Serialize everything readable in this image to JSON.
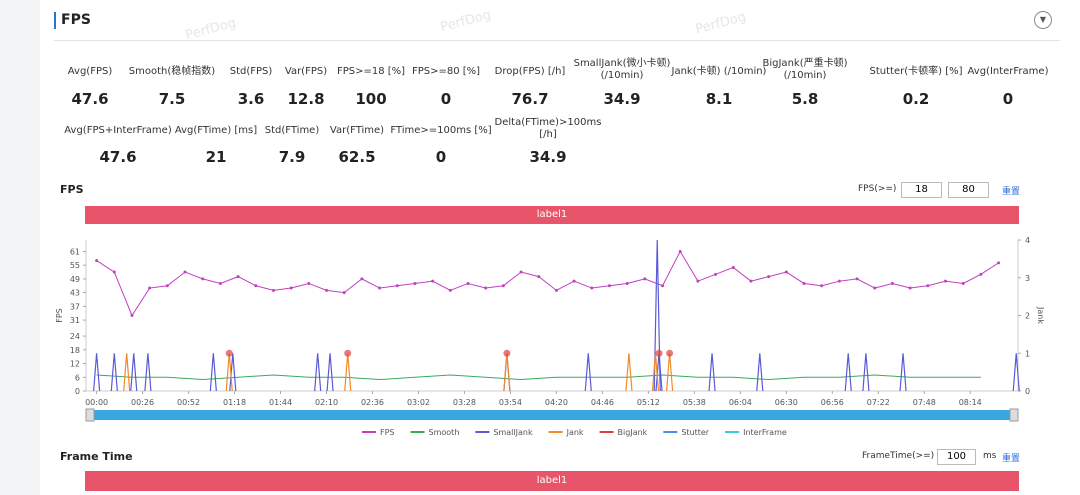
{
  "header": {
    "title": "FPS"
  },
  "watermark": "PerfDog",
  "stats": {
    "rows": [
      [
        {
          "label": "Avg(FPS)",
          "value": 47.6
        },
        {
          "label": "Smooth(稳帧指数)",
          "value": 7.5
        },
        {
          "label": "Std(FPS)",
          "value": 3.6
        },
        {
          "label": "Var(FPS)",
          "value": 12.8
        },
        {
          "label": "FPS>=18 [%]",
          "value": 100
        },
        {
          "label": "FPS>=80 [%]",
          "value": 0
        },
        {
          "label": "Drop(FPS) [/h]",
          "value": 76.7
        },
        {
          "label": "SmallJank(微小卡顿) (/10min)",
          "value": 34.9
        },
        {
          "label": "Jank(卡顿) (/10min)",
          "value": 8.1
        },
        {
          "label": "BigJank(严重卡顿) (/10min)",
          "value": 5.8
        },
        {
          "label": "Stutter(卡顿率) [%]",
          "value": 0.2
        },
        {
          "label": "Avg(InterFrame)",
          "value": 0
        }
      ],
      [
        {
          "label": "Avg(FPS+InterFrame)",
          "value": 47.6
        },
        {
          "label": "Avg(FTime) [ms]",
          "value": 21
        },
        {
          "label": "Std(FTime)",
          "value": 7.9
        },
        {
          "label": "Var(FTime)",
          "value": 62.5
        },
        {
          "label": "FTime>=100ms [%]",
          "value": 0
        },
        {
          "label": "Delta(FTime)>100ms [/h]",
          "value": 34.9
        }
      ]
    ]
  },
  "fps_panel": {
    "title": "FPS",
    "threshold_label": "FPS(>=)",
    "thresholds": [
      18,
      80
    ],
    "reset": "重置",
    "band_label": "label1"
  },
  "chart_data": {
    "type": "line",
    "ylabel": "FPS",
    "y2label": "Jank",
    "xlim": [
      -6,
      521
    ],
    "ylim": [
      0,
      66
    ],
    "y2lim": [
      0,
      4
    ],
    "yticks": [
      0,
      6,
      12,
      18,
      24,
      31,
      37,
      43,
      49,
      55,
      61
    ],
    "y2ticks": [
      0,
      1,
      2,
      3,
      4
    ],
    "xticks": [
      {
        "value": 0,
        "label": "00:00"
      },
      {
        "value": 26,
        "label": "00:26"
      },
      {
        "value": 52,
        "label": "00:52"
      },
      {
        "value": 78,
        "label": "01:18"
      },
      {
        "value": 104,
        "label": "01:44"
      },
      {
        "value": 130,
        "label": "02:10"
      },
      {
        "value": 156,
        "label": "02:36"
      },
      {
        "value": 182,
        "label": "03:02"
      },
      {
        "value": 208,
        "label": "03:28"
      },
      {
        "value": 234,
        "label": "03:54"
      },
      {
        "value": 260,
        "label": "04:20"
      },
      {
        "value": 286,
        "label": "04:46"
      },
      {
        "value": 312,
        "label": "05:12"
      },
      {
        "value": 338,
        "label": "05:38"
      },
      {
        "value": 364,
        "label": "06:04"
      },
      {
        "value": 390,
        "label": "06:30"
      },
      {
        "value": 416,
        "label": "06:56"
      },
      {
        "value": 442,
        "label": "07:22"
      },
      {
        "value": 468,
        "label": "07:48"
      },
      {
        "value": 494,
        "label": "08:14"
      }
    ],
    "series": [
      {
        "name": "FPS",
        "color": "#c040c0",
        "style": "line",
        "x": [
          0,
          10,
          20,
          30,
          40,
          50,
          60,
          70,
          80,
          90,
          100,
          110,
          120,
          130,
          140,
          150,
          160,
          170,
          180,
          190,
          200,
          210,
          220,
          230,
          240,
          250,
          260,
          270,
          280,
          290,
          300,
          310,
          320,
          330,
          340,
          350,
          360,
          370,
          380,
          390,
          400,
          410,
          420,
          430,
          440,
          450,
          460,
          470,
          480,
          490,
          500,
          510
        ],
        "values": [
          57,
          52,
          33,
          45,
          46,
          52,
          49,
          47,
          50,
          46,
          44,
          45,
          47,
          44,
          43,
          49,
          45,
          46,
          47,
          48,
          44,
          47,
          45,
          46,
          52,
          50,
          44,
          48,
          45,
          46,
          47,
          49,
          46,
          61,
          48,
          51,
          54,
          48,
          50,
          52,
          47,
          46,
          48,
          49,
          45,
          47,
          45,
          46,
          48,
          47,
          51,
          56
        ]
      },
      {
        "name": "Smooth",
        "color": "#3aaa5a",
        "style": "line",
        "x": [
          0,
          20,
          40,
          60,
          80,
          100,
          120,
          140,
          160,
          180,
          200,
          220,
          240,
          260,
          280,
          300,
          320,
          340,
          360,
          380,
          400,
          420,
          440,
          460,
          480,
          500
        ],
        "values": [
          7,
          6,
          6,
          5,
          6,
          7,
          6,
          6,
          5,
          6,
          7,
          6,
          5,
          6,
          6,
          6,
          7,
          6,
          6,
          5,
          6,
          6,
          7,
          6,
          6,
          6
        ]
      },
      {
        "name": "SmallJank",
        "color": "#5a5ad6",
        "style": "spike",
        "axis": "y2",
        "x": [
          0,
          10,
          21,
          29,
          66,
          77,
          125,
          132,
          232,
          278,
          317,
          318,
          348,
          375,
          425,
          435,
          456,
          520
        ],
        "values": [
          1,
          1,
          1,
          1,
          1,
          1,
          1,
          1,
          1,
          1,
          4,
          1,
          1,
          1,
          1,
          1,
          1,
          1
        ]
      },
      {
        "name": "Jank",
        "color": "#f08a2a",
        "style": "spike",
        "axis": "y2",
        "x": [
          17,
          75,
          142,
          232,
          301,
          316,
          324
        ],
        "values": [
          1,
          1,
          1,
          1,
          1,
          1,
          1
        ]
      },
      {
        "name": "BigJank",
        "color": "#e04040",
        "style": "dot",
        "axis": "y2",
        "x": [
          75,
          142,
          232,
          318,
          324
        ],
        "values": [
          1,
          1,
          1,
          1,
          1
        ]
      },
      {
        "name": "Stutter",
        "color": "#4a90e0",
        "style": "line",
        "x": [],
        "values": []
      },
      {
        "name": "InterFrame",
        "color": "#3cc8d8",
        "style": "line",
        "x": [],
        "values": []
      }
    ]
  },
  "frame_time_panel": {
    "title": "Frame Time",
    "threshold_label": "FrameTime(>=)",
    "threshold": 100,
    "unit": "ms",
    "reset": "重置",
    "band_label": "label1"
  }
}
